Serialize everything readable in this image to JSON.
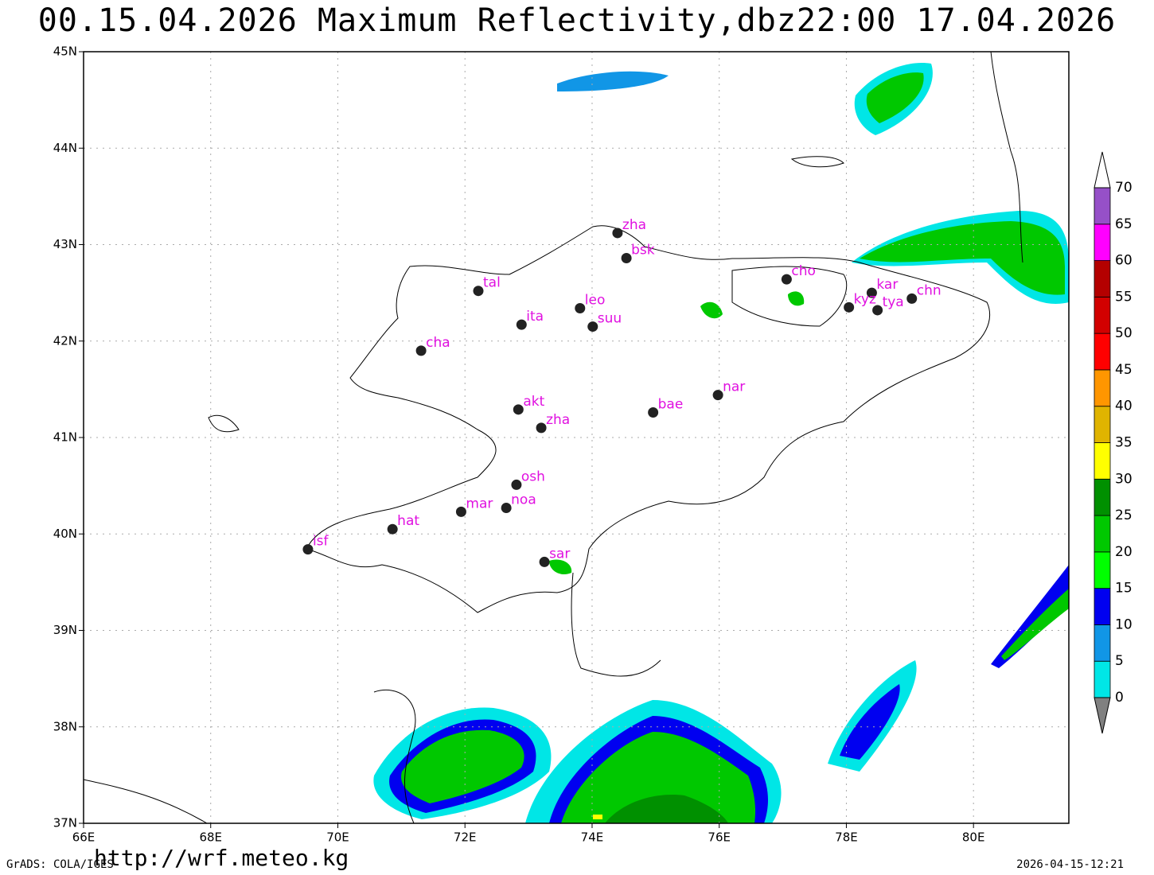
{
  "title": "00.15.04.2026  Maximum  Reflectivity,dbz22:00  17.04.2026",
  "map": {
    "xlim": [
      66,
      81.5
    ],
    "ylim": [
      37,
      45
    ],
    "xticks": [
      {
        "value": 66,
        "label": "66E"
      },
      {
        "value": 68,
        "label": "68E"
      },
      {
        "value": 70,
        "label": "70E"
      },
      {
        "value": 72,
        "label": "72E"
      },
      {
        "value": 74,
        "label": "74E"
      },
      {
        "value": 76,
        "label": "76E"
      },
      {
        "value": 78,
        "label": "78E"
      },
      {
        "value": 80,
        "label": "80E"
      }
    ],
    "yticks": [
      {
        "value": 37,
        "label": "37N"
      },
      {
        "value": 38,
        "label": "38N"
      },
      {
        "value": 39,
        "label": "39N"
      },
      {
        "value": 40,
        "label": "40N"
      },
      {
        "value": 41,
        "label": "41N"
      },
      {
        "value": 42,
        "label": "42N"
      },
      {
        "value": 43,
        "label": "43N"
      },
      {
        "value": 44,
        "label": "44N"
      },
      {
        "value": 45,
        "label": "45N"
      }
    ],
    "grid": true,
    "station_color": "#222222",
    "label_color": "#e010e0",
    "stations": [
      {
        "name": "zha",
        "lon": 74.4,
        "lat": 43.12
      },
      {
        "name": "bsk",
        "lon": 74.54,
        "lat": 42.86
      },
      {
        "name": "tal",
        "lon": 72.21,
        "lat": 42.52
      },
      {
        "name": "leo",
        "lon": 73.81,
        "lat": 42.34
      },
      {
        "name": "ita",
        "lon": 72.89,
        "lat": 42.17
      },
      {
        "name": "suu",
        "lon": 74.01,
        "lat": 42.15
      },
      {
        "name": "cha",
        "lon": 71.31,
        "lat": 41.9
      },
      {
        "name": "cho",
        "lon": 77.06,
        "lat": 42.64
      },
      {
        "name": "kar",
        "lon": 78.4,
        "lat": 42.5
      },
      {
        "name": "kyz",
        "lon": 78.04,
        "lat": 42.35
      },
      {
        "name": "tya",
        "lon": 78.49,
        "lat": 42.32
      },
      {
        "name": "chn",
        "lon": 79.03,
        "lat": 42.44
      },
      {
        "name": "nar",
        "lon": 75.98,
        "lat": 41.44
      },
      {
        "name": "bae",
        "lon": 74.96,
        "lat": 41.26
      },
      {
        "name": "akt",
        "lon": 72.84,
        "lat": 41.29
      },
      {
        "name": "zha",
        "lon": 73.2,
        "lat": 41.1
      },
      {
        "name": "osh",
        "lon": 72.81,
        "lat": 40.51
      },
      {
        "name": "noa",
        "lon": 72.65,
        "lat": 40.27
      },
      {
        "name": "mar",
        "lon": 71.94,
        "lat": 40.23
      },
      {
        "name": "hat",
        "lon": 70.86,
        "lat": 40.05
      },
      {
        "name": "isf",
        "lon": 69.53,
        "lat": 39.84
      },
      {
        "name": "sar",
        "lon": 73.25,
        "lat": 39.71
      }
    ]
  },
  "colorbar": {
    "levels": [
      0,
      5,
      10,
      15,
      20,
      25,
      30,
      35,
      40,
      45,
      50,
      55,
      60,
      65,
      70
    ],
    "colors": [
      "#00e6e6",
      "#1196e6",
      "#0000f0",
      "#00ff00",
      "#00c800",
      "#009000",
      "#ffff00",
      "#e0b400",
      "#ff9600",
      "#ff0000",
      "#d20000",
      "#b40000",
      "#ff00ff",
      "#9650c8"
    ],
    "under_color": "#808080",
    "over_color": "#ffffff"
  },
  "footer": {
    "left": "GrADS: COLA/IGES",
    "url": "http://wrf.meteo.kg",
    "right": "2026-04-15-12:21"
  }
}
